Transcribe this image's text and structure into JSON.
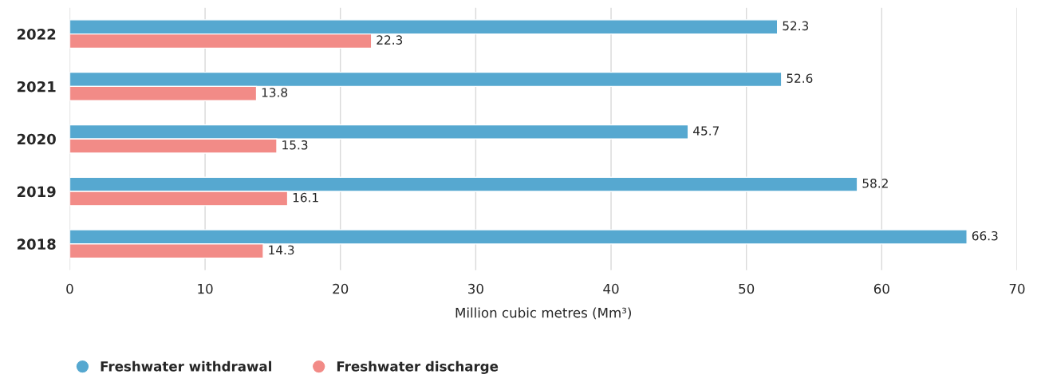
{
  "chart_data": {
    "type": "bar",
    "orientation": "horizontal",
    "xlabel": "Million cubic metres (Mm³)",
    "categories": [
      "2022",
      "2021",
      "2020",
      "2019",
      "2018"
    ],
    "series": [
      {
        "name": "Freshwater withdrawal",
        "color": "#56a8d0",
        "values": [
          52.3,
          52.6,
          45.7,
          58.2,
          66.3
        ]
      },
      {
        "name": "Freshwater discharge",
        "color": "#f28b87",
        "values": [
          22.3,
          13.8,
          15.3,
          16.1,
          14.3
        ]
      }
    ],
    "xlim": [
      0,
      70
    ],
    "xticks": [
      0,
      10,
      20,
      30,
      40,
      50,
      60,
      70
    ],
    "grid": "x",
    "legend": "bottom left",
    "data_labels": true
  }
}
